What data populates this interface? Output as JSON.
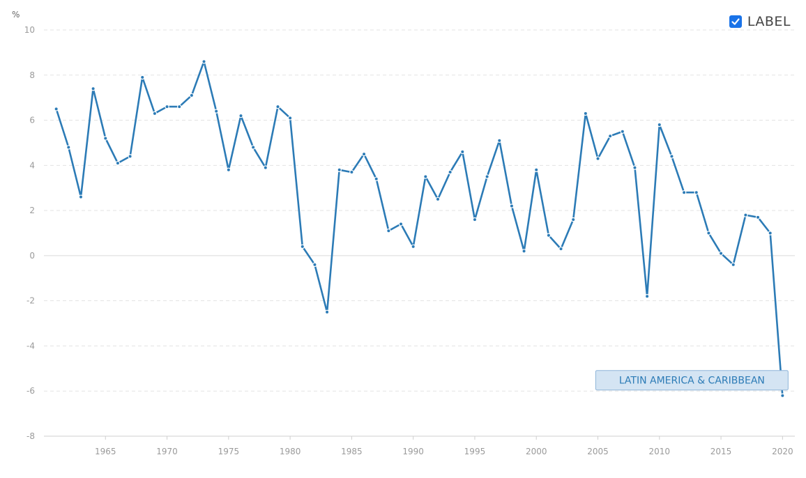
{
  "legend": {
    "label": "LABEL",
    "checked": true,
    "checkbox_color": "#1a73e8"
  },
  "chart_data": {
    "type": "line",
    "ylabel": "%",
    "ylim": [
      -8,
      10
    ],
    "yticks": [
      -8,
      -6,
      -4,
      -2,
      0,
      2,
      4,
      6,
      8,
      10
    ],
    "xlim": [
      1960,
      2021
    ],
    "xticks": [
      1965,
      1970,
      1975,
      1980,
      1985,
      1990,
      1995,
      2000,
      2005,
      2010,
      2015,
      2020
    ],
    "grid": true,
    "line_color": "#2c7bb6",
    "annotation_box_fill": "#d4e4f3",
    "annotation_box_stroke": "#8db4d8",
    "series": [
      {
        "name": "LATIN AMERICA & CARIBBEAN",
        "x": [
          1961,
          1962,
          1963,
          1964,
          1965,
          1966,
          1967,
          1968,
          1969,
          1970,
          1971,
          1972,
          1973,
          1974,
          1975,
          1976,
          1977,
          1978,
          1979,
          1980,
          1981,
          1982,
          1983,
          1984,
          1985,
          1986,
          1987,
          1988,
          1989,
          1990,
          1991,
          1992,
          1993,
          1994,
          1995,
          1996,
          1997,
          1998,
          1999,
          2000,
          2001,
          2002,
          2003,
          2004,
          2005,
          2006,
          2007,
          2008,
          2009,
          2010,
          2011,
          2012,
          2013,
          2014,
          2015,
          2016,
          2017,
          2018,
          2019,
          2020
        ],
        "values": [
          6.5,
          4.8,
          2.6,
          7.4,
          5.2,
          4.1,
          4.4,
          7.9,
          6.3,
          6.6,
          6.6,
          7.1,
          8.6,
          6.4,
          3.8,
          6.2,
          4.8,
          3.9,
          6.6,
          6.1,
          0.4,
          -0.4,
          -2.5,
          3.8,
          3.7,
          4.5,
          3.4,
          1.1,
          1.4,
          0.4,
          3.5,
          2.5,
          3.7,
          4.6,
          1.6,
          3.5,
          5.1,
          2.2,
          0.2,
          3.8,
          0.9,
          0.3,
          1.6,
          6.3,
          4.3,
          5.3,
          5.5,
          3.9,
          -1.8,
          5.8,
          4.4,
          2.8,
          2.8,
          1.0,
          0.1,
          -0.4,
          1.8,
          1.7,
          1.0,
          -6.2
        ]
      }
    ]
  }
}
